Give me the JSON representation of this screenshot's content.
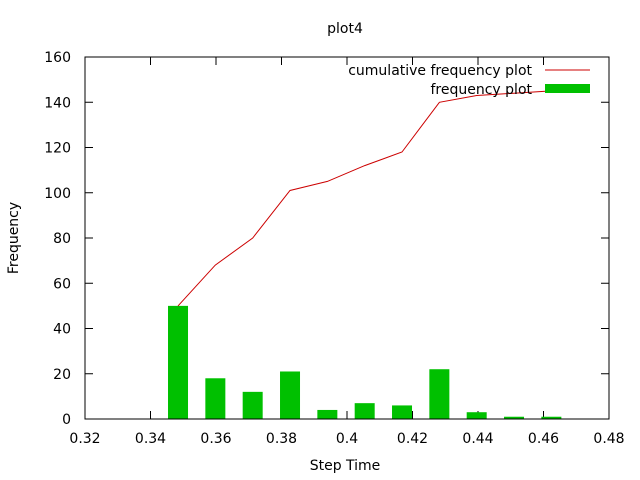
{
  "chart_data": {
    "type": "bar",
    "title": "plot4",
    "xlabel": "Step Time",
    "ylabel": "Frequency",
    "xlim": [
      0.32,
      0.48
    ],
    "ylim": [
      0,
      160
    ],
    "xticks": [
      "0.32",
      "0.34",
      "0.36",
      "0.38",
      "0.4",
      "0.42",
      "0.44",
      "0.46",
      "0.48"
    ],
    "yticks": [
      "0",
      "20",
      "40",
      "60",
      "80",
      "100",
      "120",
      "140",
      "160"
    ],
    "legend_position": "top-right",
    "grid": false,
    "series": [
      {
        "name": "cumulative frequency plot",
        "type": "line",
        "color": "#cc0000",
        "x": [
          0.3484,
          0.3598,
          0.3712,
          0.3826,
          0.394,
          0.4054,
          0.4168,
          0.4282,
          0.4396,
          0.451,
          0.4624
        ],
        "values": [
          50,
          68,
          80,
          101,
          105,
          112,
          118,
          140,
          143,
          144,
          145
        ]
      },
      {
        "name": "frequency plot",
        "type": "bar",
        "color": "#00c000",
        "x": [
          0.3484,
          0.3598,
          0.3712,
          0.3826,
          0.394,
          0.4054,
          0.4168,
          0.4282,
          0.4396,
          0.451,
          0.4624
        ],
        "values": [
          50,
          18,
          12,
          21,
          4,
          7,
          6,
          22,
          3,
          1,
          1
        ]
      }
    ]
  }
}
